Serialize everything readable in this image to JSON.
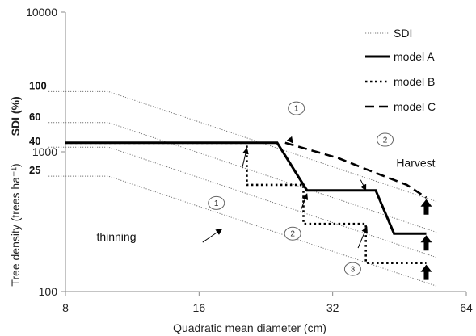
{
  "chart_data": {
    "type": "line",
    "x_axis": {
      "label": "Quadratic mean diameter  (cm)",
      "scale": "log",
      "range": [
        8,
        64
      ],
      "ticks": [
        8,
        16,
        32,
        64
      ]
    },
    "y_axis": {
      "label": "Tree density (trees ha⁻¹)",
      "scale": "log",
      "range": [
        100,
        10000
      ],
      "ticks": [
        100,
        1000,
        10000
      ]
    },
    "sdi_axis": {
      "label": "SDI (%)",
      "ticks": [
        {
          "label": "100",
          "density": 2700
        },
        {
          "label": "60",
          "density": 1620
        },
        {
          "label": "40",
          "density": 1080
        },
        {
          "label": "25",
          "density": 670
        }
      ]
    },
    "legend": [
      {
        "key": "sdi",
        "label": "SDI",
        "style": "thin-dotted"
      },
      {
        "key": "a",
        "label": "model A",
        "style": "solid"
      },
      {
        "key": "b",
        "label": "model B",
        "style": "dotted"
      },
      {
        "key": "c",
        "label": "model C",
        "style": "dashed"
      }
    ],
    "sdi_lines": [
      {
        "level": "100",
        "points": [
          [
            8,
            2700
          ],
          [
            10,
            2700
          ],
          [
            55,
            440
          ]
        ]
      },
      {
        "level": "60",
        "points": [
          [
            8,
            1620
          ],
          [
            10,
            1620
          ],
          [
            55,
            265
          ]
        ]
      },
      {
        "level": "40",
        "points": [
          [
            8,
            1080
          ],
          [
            10,
            1080
          ],
          [
            55,
            175
          ]
        ]
      },
      {
        "level": "25",
        "points": [
          [
            8,
            670
          ],
          [
            10,
            670
          ],
          [
            55,
            109
          ]
        ]
      }
    ],
    "series": [
      {
        "key": "a",
        "name": "model A",
        "points": [
          [
            8,
            1160
          ],
          [
            24,
            1160
          ],
          [
            28,
            530
          ],
          [
            40,
            530
          ],
          [
            44,
            260
          ],
          [
            52,
            260
          ]
        ]
      },
      {
        "key": "b",
        "name": "model B",
        "points": [
          [
            8,
            1160
          ],
          [
            20.5,
            1160
          ],
          [
            20.5,
            580
          ],
          [
            27.5,
            580
          ],
          [
            27.5,
            305
          ],
          [
            38,
            305
          ],
          [
            38,
            160
          ],
          [
            52,
            160
          ]
        ]
      },
      {
        "key": "c",
        "name": "model C",
        "points": [
          [
            25,
            1160
          ],
          [
            33,
            900
          ],
          [
            38.5,
            740
          ],
          [
            47,
            580
          ],
          [
            52,
            470
          ]
        ]
      }
    ],
    "annotations": [
      {
        "key": "thinning",
        "text": "thinning"
      },
      {
        "key": "harvest",
        "text": "Harvest"
      }
    ],
    "circle_labels": [
      {
        "text": "1",
        "x": 26.5,
        "y": 2050
      },
      {
        "text": "2",
        "x": 42,
        "y": 1220
      },
      {
        "text": "1",
        "x": 17.5,
        "y": 430
      },
      {
        "text": "2",
        "x": 26,
        "y": 260
      },
      {
        "text": "3",
        "x": 35.5,
        "y": 145
      }
    ],
    "colors": {
      "lines": "#000000",
      "sdi": "#777777",
      "text": "#111111"
    }
  }
}
